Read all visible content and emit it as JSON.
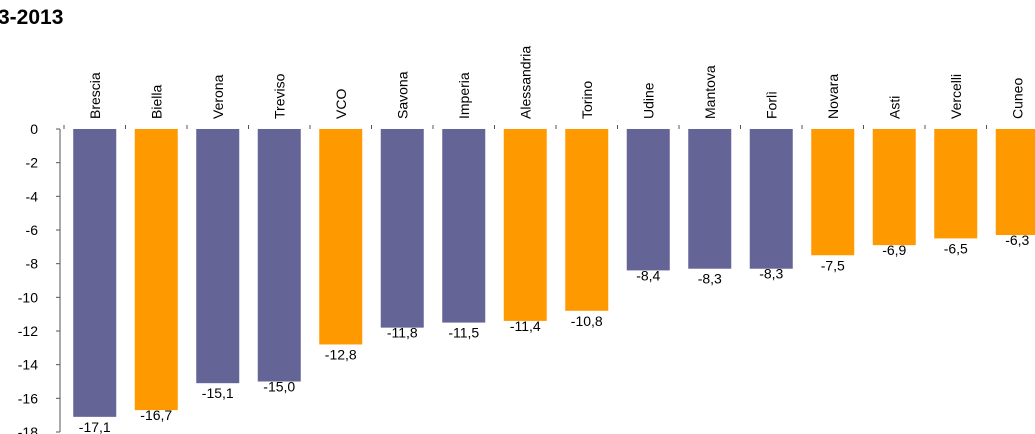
{
  "chart_data": {
    "type": "bar",
    "title": "3-2013",
    "categories": [
      "Brescia",
      "Biella",
      "Verona",
      "Treviso",
      "VCO",
      "Savona",
      "Imperia",
      "Alessandria",
      "Torino",
      "Udine",
      "Mantova",
      "Forlì",
      "Novara",
      "Asti",
      "Vercelli",
      "Cuneo"
    ],
    "values": [
      -17.1,
      -16.7,
      -15.1,
      -15.0,
      -12.8,
      -11.8,
      -11.5,
      -11.4,
      -10.8,
      -8.4,
      -8.3,
      -8.3,
      -7.5,
      -6.9,
      -6.5,
      -6.3
    ],
    "value_labels": [
      "-17,1",
      "-16,7",
      "-15,1",
      "-15,0",
      "-12,8",
      "-11,8",
      "-11,5",
      "-11,4",
      "-10,8",
      "-8,4",
      "-8,3",
      "-8,3",
      "-7,5",
      "-6,9",
      "-6,5",
      "-6,3"
    ],
    "bar_colors": [
      "#646496",
      "#FF9900",
      "#646496",
      "#646496",
      "#FF9900",
      "#646496",
      "#646496",
      "#FF9900",
      "#FF9900",
      "#646496",
      "#646496",
      "#646496",
      "#FF9900",
      "#FF9900",
      "#FF9900",
      "#FF9900"
    ],
    "yticks": [
      0,
      -2,
      -4,
      -6,
      -8,
      -10,
      -12,
      -14,
      -16,
      -18
    ],
    "ylim": [
      -18,
      0
    ],
    "xlabel": "",
    "ylabel": "",
    "grid": false,
    "legend": "none"
  }
}
